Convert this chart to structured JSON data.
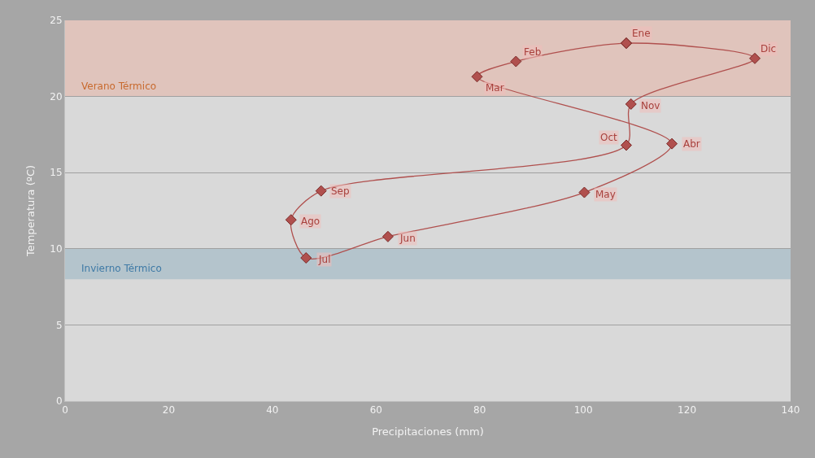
{
  "chart_data": {
    "type": "scatter",
    "xlabel": "Precipitaciones (mm)",
    "ylabel": "Temperatura (ºC)",
    "x": [
      108.3,
      87.0,
      79.5,
      117.1,
      100.2,
      62.3,
      46.5,
      43.6,
      49.4,
      108.3,
      109.2,
      133.1
    ],
    "series": [
      {
        "color": "#b0504e",
        "values": [
          23.5,
          22.3,
          21.3,
          16.9,
          13.7,
          10.8,
          9.4,
          11.9,
          13.8,
          16.8,
          19.5,
          22.5
        ]
      }
    ],
    "marker": "diamond",
    "line_style": "solid",
    "xlim": [
      0,
      140
    ],
    "xticks": [
      0,
      20,
      40,
      60,
      80,
      100,
      120,
      140
    ],
    "ylim": [
      0,
      25
    ],
    "yticks": [
      0,
      5,
      10,
      15,
      20,
      25
    ],
    "grid": "y",
    "bands": [
      {
        "axis": "y",
        "from": 20,
        "to": 25,
        "label": "Verano Térmico",
        "color": "#e0c4bc"
      },
      {
        "axis": "y",
        "from": 8,
        "to": 10,
        "label": "Invierno Térmico",
        "color": "#b4c4cc"
      }
    ],
    "annotations": [
      {
        "text": "Ene",
        "x": 108.3,
        "y": 23.5
      },
      {
        "text": "Feb",
        "x": 87.0,
        "y": 22.3
      },
      {
        "text": "Mar",
        "x": 79.5,
        "y": 21.3
      },
      {
        "text": "Abr",
        "x": 117.1,
        "y": 16.9
      },
      {
        "text": "May",
        "x": 100.2,
        "y": 13.7
      },
      {
        "text": "Jun",
        "x": 62.3,
        "y": 10.8
      },
      {
        "text": "Jul",
        "x": 46.5,
        "y": 9.4
      },
      {
        "text": "Ago",
        "x": 43.6,
        "y": 11.9
      },
      {
        "text": "Sep",
        "x": 49.4,
        "y": 13.8
      },
      {
        "text": "Oct",
        "x": 108.3,
        "y": 16.8
      },
      {
        "text": "Nov",
        "x": 109.2,
        "y": 19.5
      },
      {
        "text": "Dic",
        "x": 133.1,
        "y": 22.5
      }
    ]
  }
}
